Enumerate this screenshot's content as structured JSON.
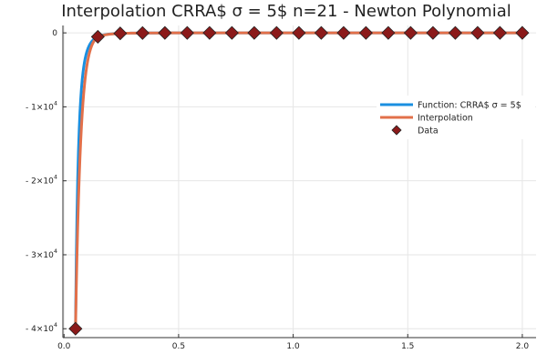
{
  "chart_data": {
    "type": "line",
    "title": "Interpolation CRRA$   σ = 5$ n=21 - Newton Polynomial",
    "xlabel": "",
    "ylabel": "",
    "xlim": [
      -0.005,
      2.06
    ],
    "ylim": [
      -41200,
      1000
    ],
    "grid": true,
    "legend_position": "right",
    "x_ticks": [
      {
        "value": 0.0,
        "label": "0.0"
      },
      {
        "value": 0.5,
        "label": "0.5"
      },
      {
        "value": 1.0,
        "label": "1.0"
      },
      {
        "value": 1.5,
        "label": "1.5"
      },
      {
        "value": 2.0,
        "label": "2.0"
      }
    ],
    "y_ticks": [
      {
        "value": 0,
        "base": "0",
        "exp": ""
      },
      {
        "value": -10000,
        "base": "- 1×10",
        "exp": "4"
      },
      {
        "value": -20000,
        "base": "- 2×10",
        "exp": "4"
      },
      {
        "value": -30000,
        "base": "- 3×10",
        "exp": "4"
      },
      {
        "value": -40000,
        "base": "- 4×10",
        "exp": "4"
      }
    ],
    "function": {
      "type": "crra",
      "sigma": 5,
      "x_range": [
        0.05,
        2.0
      ]
    },
    "series": [
      {
        "name": "Function: CRRA$   σ = 5$",
        "kind": "line",
        "color": "#1a8fe0",
        "width": 3
      },
      {
        "name": "Interpolation",
        "kind": "line",
        "color": "#e2704a",
        "width": 3
      },
      {
        "name": "Data",
        "kind": "scatter",
        "color": "#8b1a1a",
        "marker": "diamond",
        "x": [
          0.05,
          0.1475,
          0.245,
          0.3425,
          0.44,
          0.5375,
          0.635,
          0.7325,
          0.83,
          0.9275,
          1.025,
          1.1225,
          1.22,
          1.3175,
          1.415,
          1.5125,
          1.61,
          1.7075,
          1.805,
          1.9025,
          2.0
        ],
        "y": [
          -40000,
          -528.3,
          -69.4,
          -17.7,
          -6.5,
          -2.97,
          -1.53,
          -0.87,
          -0.53,
          -0.34,
          -0.23,
          -0.16,
          -0.11,
          -0.083,
          -0.062,
          -0.048,
          -0.037,
          -0.03,
          -0.024,
          -0.019,
          -0.016
        ]
      }
    ]
  }
}
